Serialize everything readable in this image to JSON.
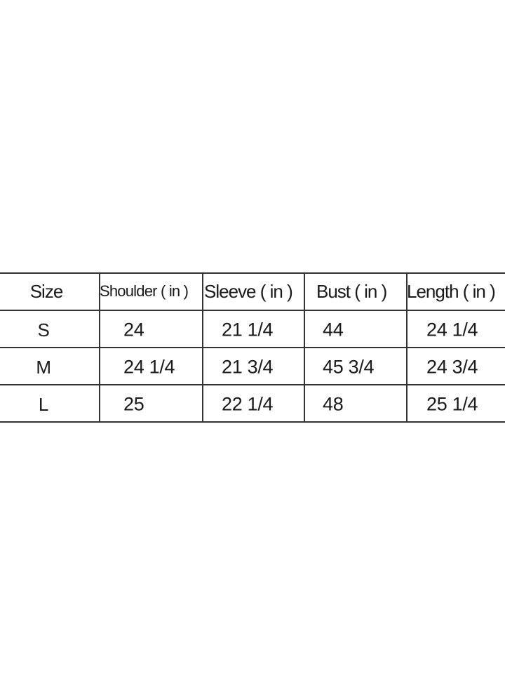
{
  "size_chart": {
    "headers": [
      "Size",
      "Shoulder ( in )",
      "Sleeve ( in )",
      "Bust ( in )",
      "Length ( in )"
    ],
    "rows": [
      {
        "size": "S",
        "shoulder": "24",
        "sleeve": "21 1/4",
        "bust": "44",
        "length": "24 1/4"
      },
      {
        "size": "M",
        "shoulder": "24 1/4",
        "sleeve": "21 3/4",
        "bust": "45 3/4",
        "length": "24 3/4"
      },
      {
        "size": "L",
        "shoulder": "25",
        "sleeve": "22 1/4",
        "bust": "48",
        "length": "25 1/4"
      }
    ]
  }
}
